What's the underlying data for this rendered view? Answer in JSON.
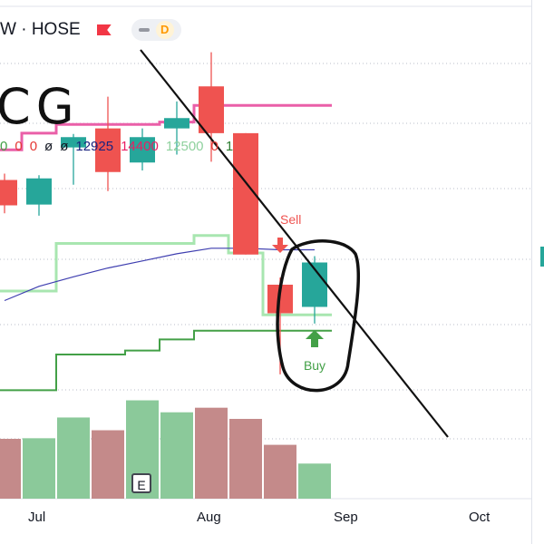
{
  "header": {
    "symbol_exchange": "W · HOSE",
    "timeframe_badge": "D"
  },
  "ticker_handwritten": "CG",
  "indicator_values": [
    {
      "text": "0",
      "color": "#43a047"
    },
    {
      "text": "0",
      "color": "#e53935"
    },
    {
      "text": "0",
      "color": "#e53935"
    },
    {
      "text": "ø",
      "color": "#131722"
    },
    {
      "text": "ø",
      "color": "#131722"
    },
    {
      "text": "12925",
      "color": "#1a237e"
    },
    {
      "text": "14400",
      "color": "#e91e63"
    },
    {
      "text": "12500",
      "color": "#8fd19e"
    },
    {
      "text": "0",
      "color": "#e53935"
    },
    {
      "text": "1",
      "color": "#2e7d32"
    }
  ],
  "x_axis": [
    "Jul",
    "Aug",
    "Sep",
    "Oct"
  ],
  "signals": {
    "sell": "Sell",
    "buy": "Buy"
  },
  "volume_button": "E",
  "colors": {
    "up": "#26a69a",
    "down": "#ef5350",
    "vol_up": "#8bc99a",
    "vol_down": "#c48a8a",
    "pink": "#ea5fa8",
    "light_green": "#a8e6b0",
    "navy": "#3f3fb0",
    "dark_green": "#43a047",
    "sell_arrow": "#ef5350",
    "buy_arrow": "#43a047"
  },
  "chart_data": {
    "type": "candlestick",
    "timeframe": "weekly",
    "candles": [
      {
        "open": 12700,
        "high": 12780,
        "low": 12280,
        "close": 12380,
        "dir": "down"
      },
      {
        "open": 12390,
        "high": 12760,
        "low": 12250,
        "close": 12720,
        "dir": "up"
      },
      {
        "open": 13110,
        "high": 13280,
        "low": 12640,
        "close": 13240,
        "dir": "up"
      },
      {
        "open": 13350,
        "high": 13750,
        "low": 12560,
        "close": 12800,
        "dir": "down"
      },
      {
        "open": 12920,
        "high": 13350,
        "low": 12820,
        "close": 13240,
        "dir": "up"
      },
      {
        "open": 13350,
        "high": 13690,
        "low": 13020,
        "close": 13480,
        "dir": "up"
      },
      {
        "open": 13880,
        "high": 14310,
        "low": 12930,
        "close": 13290,
        "dir": "down"
      },
      {
        "open": 13290,
        "high": 13290,
        "low": 11760,
        "close": 11760,
        "dir": "down"
      },
      {
        "open": 11380,
        "high": 11470,
        "low": 10250,
        "close": 11020,
        "dir": "down"
      },
      {
        "open": 11100,
        "high": 11740,
        "low": 10890,
        "close": 11660,
        "dir": "up"
      }
    ],
    "volume": [
      {
        "value": 300,
        "dir": "down"
      },
      {
        "value": 303,
        "dir": "up"
      },
      {
        "value": 407,
        "dir": "up"
      },
      {
        "value": 343,
        "dir": "down"
      },
      {
        "value": 493,
        "dir": "up"
      },
      {
        "value": 433,
        "dir": "up"
      },
      {
        "value": 456,
        "dir": "down"
      },
      {
        "value": 400,
        "dir": "down"
      },
      {
        "value": 270,
        "dir": "down"
      },
      {
        "value": 176,
        "dir": "up"
      }
    ],
    "lines": {
      "pink": [
        13080,
        13290,
        13400,
        13400,
        13400,
        13430,
        13640,
        13640,
        13640,
        13640
      ],
      "light_green": [
        11300,
        11300,
        11900,
        11900,
        11900,
        11900,
        12000,
        11780,
        11000,
        11000
      ],
      "navy": [
        11180,
        11360,
        11480,
        11590,
        11680,
        11770,
        11840,
        11840,
        11820,
        11820
      ],
      "dark_green": [
        10050,
        10050,
        10500,
        10500,
        10550,
        10690,
        10800,
        10800,
        10800,
        10800
      ]
    },
    "sell_at_candle": 8,
    "buy_at_candle": 9
  }
}
